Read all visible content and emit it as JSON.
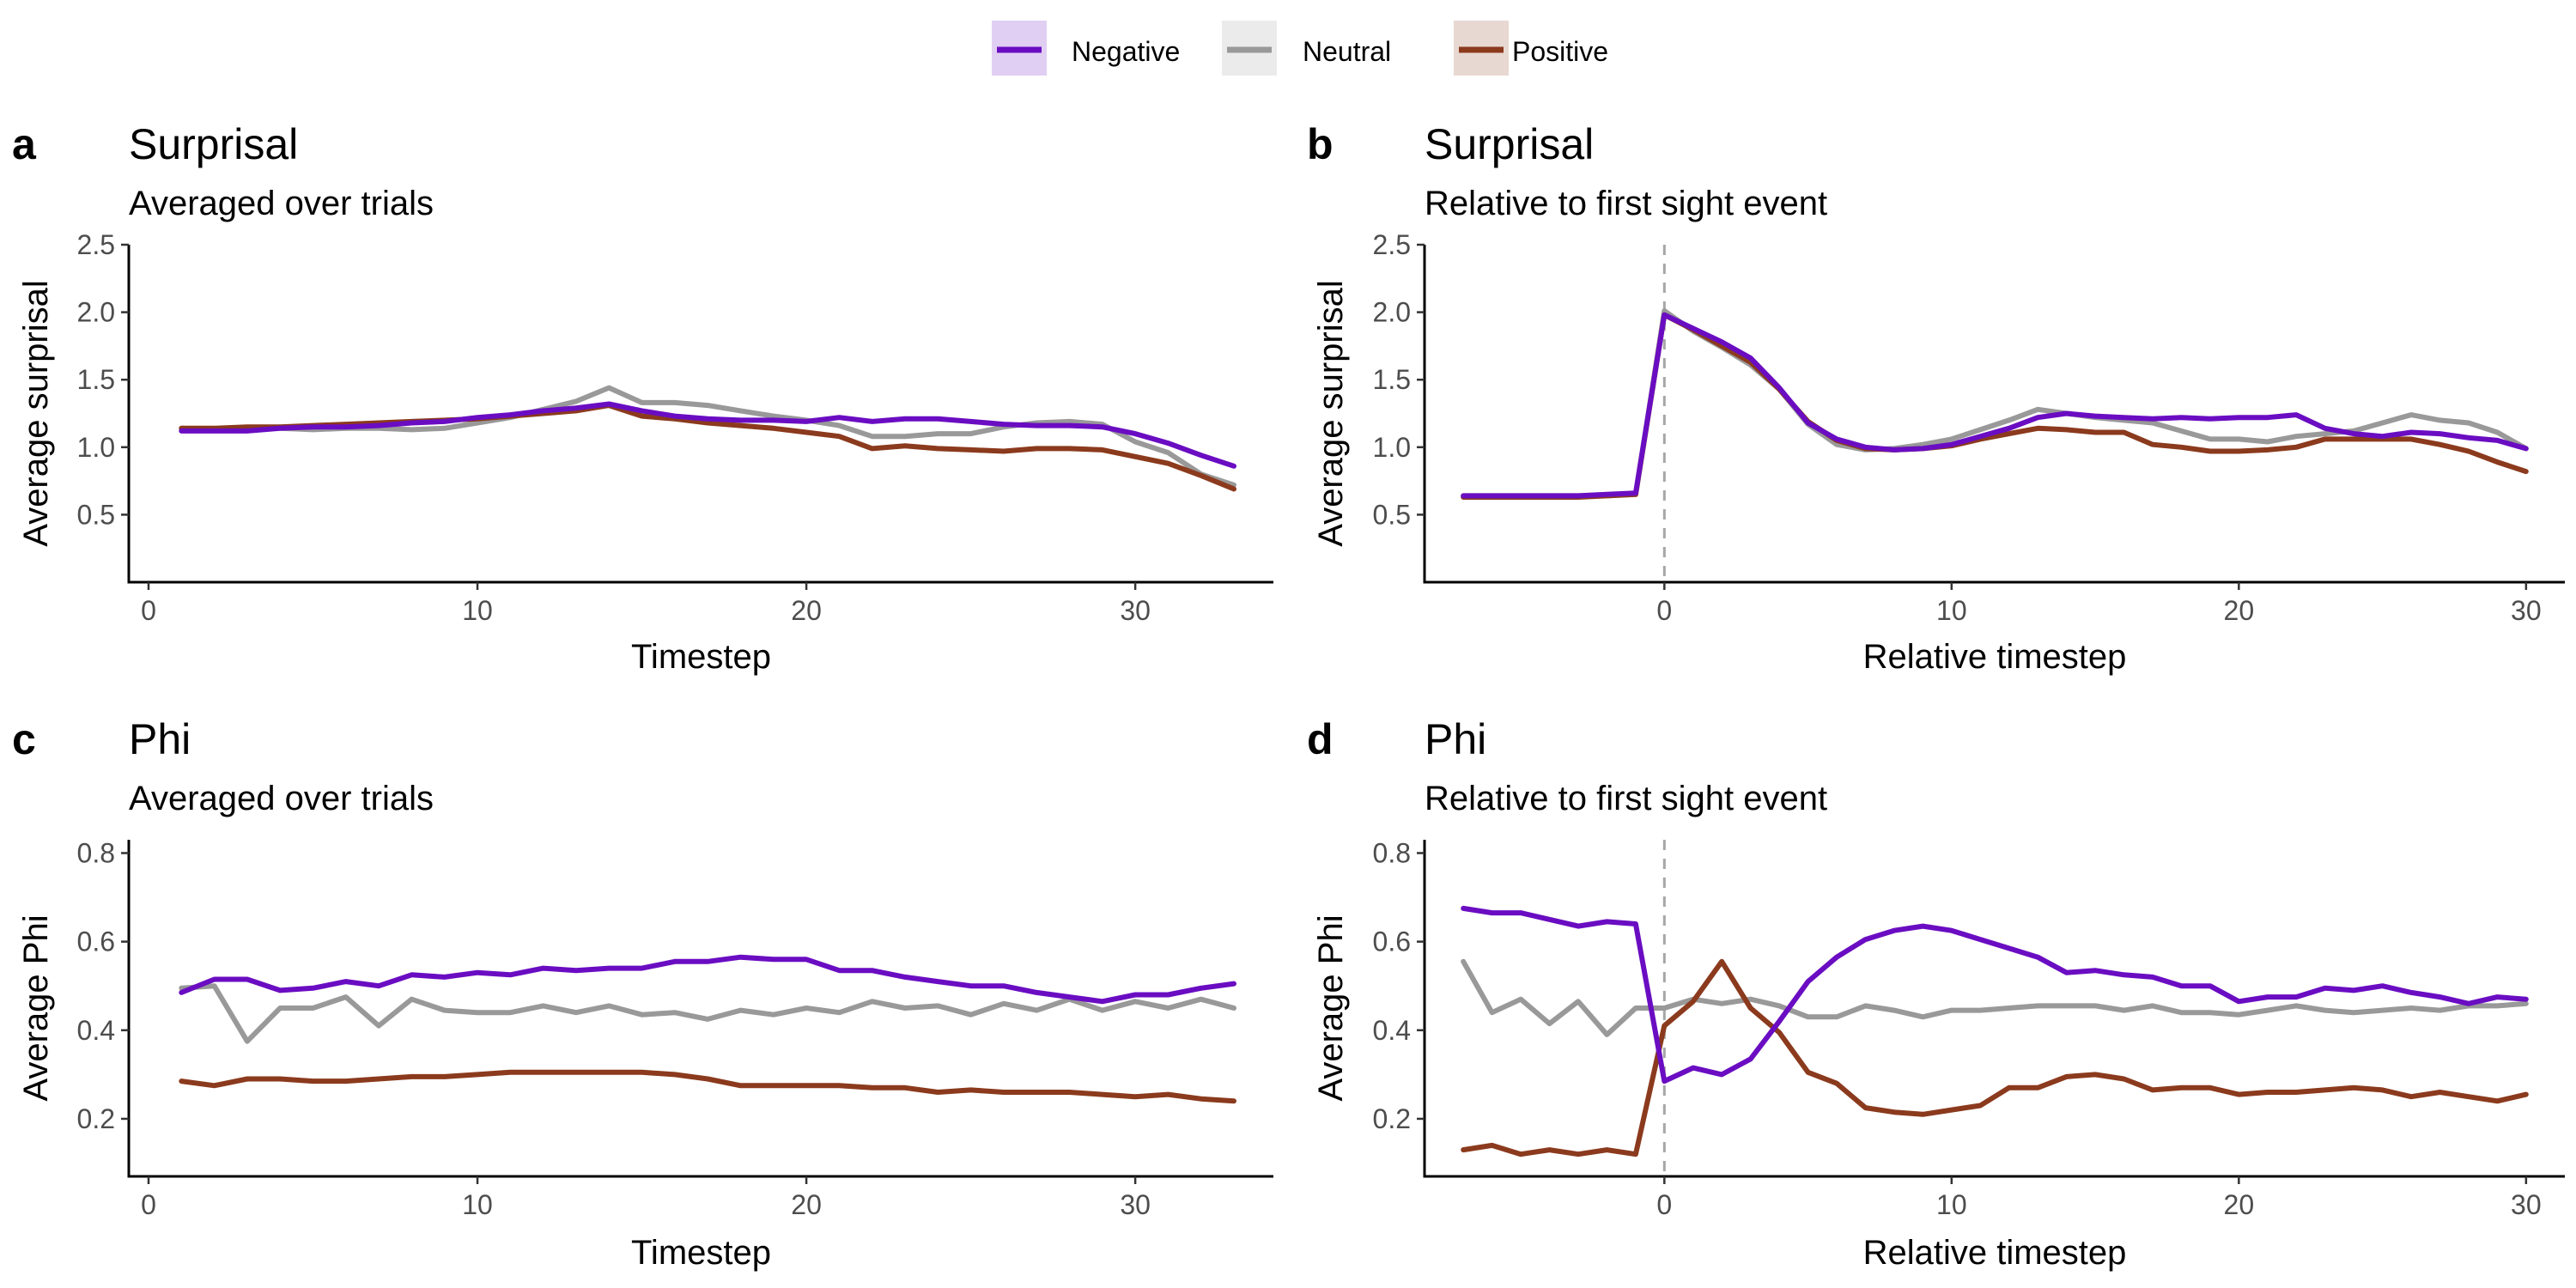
{
  "legend": {
    "items": [
      {
        "label": "Negative",
        "color": "#6a0dc2"
      },
      {
        "label": "Neutral",
        "color": "#999999"
      },
      {
        "label": "Positive",
        "color": "#8b3a1d"
      }
    ]
  },
  "chart_data": [
    {
      "panel": "a",
      "type": "line",
      "title": "Surprisal",
      "subtitle": "Averaged over trials",
      "xlabel": "Timestep",
      "ylabel": "Average surprisal",
      "xlim": [
        -0.6,
        34.2
      ],
      "ylim": [
        0,
        2.5
      ],
      "xticks": [
        0,
        10,
        20,
        30
      ],
      "yticks": [
        0.5,
        1.0,
        1.5,
        2.0,
        2.5
      ],
      "yticklabels": [
        "0.5",
        "1.0",
        "1.5",
        "2.0",
        "2.5"
      ],
      "ref_line": null,
      "x": [
        1,
        2,
        3,
        4,
        5,
        6,
        7,
        8,
        9,
        10,
        11,
        12,
        13,
        14,
        15,
        16,
        17,
        18,
        19,
        20,
        21,
        22,
        23,
        24,
        25,
        26,
        27,
        28,
        29,
        30,
        31,
        32,
        33
      ],
      "series": [
        {
          "name": "Negative",
          "values": [
            1.12,
            1.12,
            1.12,
            1.14,
            1.15,
            1.15,
            1.16,
            1.18,
            1.19,
            1.22,
            1.24,
            1.27,
            1.29,
            1.32,
            1.27,
            1.23,
            1.21,
            1.2,
            1.2,
            1.19,
            1.22,
            1.19,
            1.21,
            1.21,
            1.19,
            1.17,
            1.16,
            1.16,
            1.15,
            1.1,
            1.03,
            0.94,
            0.86
          ]
        },
        {
          "name": "Neutral",
          "values": [
            1.14,
            1.13,
            1.14,
            1.14,
            1.13,
            1.14,
            1.14,
            1.13,
            1.14,
            1.18,
            1.22,
            1.28,
            1.34,
            1.44,
            1.33,
            1.33,
            1.31,
            1.27,
            1.23,
            1.2,
            1.16,
            1.08,
            1.08,
            1.1,
            1.1,
            1.15,
            1.18,
            1.19,
            1.17,
            1.04,
            0.96,
            0.8,
            0.72
          ]
        },
        {
          "name": "Positive",
          "values": [
            1.14,
            1.14,
            1.15,
            1.15,
            1.16,
            1.17,
            1.18,
            1.19,
            1.2,
            1.21,
            1.23,
            1.25,
            1.27,
            1.31,
            1.23,
            1.21,
            1.18,
            1.16,
            1.14,
            1.11,
            1.08,
            0.99,
            1.01,
            0.99,
            0.98,
            0.97,
            0.99,
            0.99,
            0.98,
            0.93,
            0.88,
            0.79,
            0.69
          ]
        }
      ]
    },
    {
      "panel": "b",
      "type": "line",
      "title": "Surprisal",
      "subtitle": "Relative to first sight event",
      "xlabel": "Relative timestep",
      "ylabel": "Average surprisal",
      "xlim": [
        -8.35,
        31.35
      ],
      "ylim": [
        0,
        2.5
      ],
      "xticks": [
        0,
        10,
        20,
        30
      ],
      "yticks": [
        0.5,
        1.0,
        1.5,
        2.0,
        2.5
      ],
      "yticklabels": [
        "0.5",
        "1.0",
        "1.5",
        "2.0",
        "2.5"
      ],
      "ref_line": 0,
      "x": [
        -7,
        -6,
        -5,
        -4,
        -3,
        -2,
        -1,
        0,
        1,
        2,
        3,
        4,
        5,
        6,
        7,
        8,
        9,
        10,
        11,
        12,
        13,
        14,
        15,
        16,
        17,
        18,
        19,
        20,
        21,
        22,
        23,
        24,
        25,
        26,
        27,
        28,
        29,
        30
      ],
      "series": [
        {
          "name": "Negative",
          "values": [
            0.64,
            0.64,
            0.64,
            0.64,
            0.64,
            0.65,
            0.66,
            1.98,
            1.88,
            1.78,
            1.66,
            1.44,
            1.18,
            1.06,
            1.0,
            0.98,
            0.99,
            1.02,
            1.08,
            1.14,
            1.22,
            1.25,
            1.23,
            1.22,
            1.21,
            1.22,
            1.21,
            1.22,
            1.22,
            1.24,
            1.14,
            1.1,
            1.08,
            1.11,
            1.1,
            1.07,
            1.05,
            0.99
          ]
        },
        {
          "name": "Neutral",
          "values": [
            0.64,
            0.64,
            0.64,
            0.64,
            0.64,
            0.64,
            0.65,
            2.01,
            1.86,
            1.74,
            1.61,
            1.43,
            1.17,
            1.02,
            0.98,
            0.99,
            1.02,
            1.06,
            1.13,
            1.2,
            1.28,
            1.25,
            1.22,
            1.2,
            1.18,
            1.12,
            1.06,
            1.06,
            1.04,
            1.08,
            1.1,
            1.12,
            1.18,
            1.24,
            1.2,
            1.18,
            1.11,
            0.99
          ]
        },
        {
          "name": "Positive",
          "values": [
            0.63,
            0.63,
            0.63,
            0.63,
            0.63,
            0.64,
            0.65,
            1.98,
            1.87,
            1.75,
            1.63,
            1.43,
            1.19,
            1.05,
            0.99,
            0.98,
            0.99,
            1.01,
            1.06,
            1.1,
            1.14,
            1.13,
            1.11,
            1.11,
            1.02,
            1.0,
            0.97,
            0.97,
            0.98,
            1.0,
            1.06,
            1.06,
            1.06,
            1.06,
            1.02,
            0.97,
            0.89,
            0.82
          ]
        }
      ]
    },
    {
      "panel": "c",
      "type": "line",
      "title": "Phi",
      "subtitle": "Averaged over trials",
      "xlabel": "Timestep",
      "ylabel": "Average Phi",
      "xlim": [
        -0.6,
        34.2
      ],
      "ylim": [
        0.07,
        0.83
      ],
      "xticks": [
        0,
        10,
        20,
        30
      ],
      "yticks": [
        0.2,
        0.4,
        0.6,
        0.8
      ],
      "yticklabels": [
        "0.2",
        "0.4",
        "0.6",
        "0.8"
      ],
      "ref_line": null,
      "x": [
        1,
        2,
        3,
        4,
        5,
        6,
        7,
        8,
        9,
        10,
        11,
        12,
        13,
        14,
        15,
        16,
        17,
        18,
        19,
        20,
        21,
        22,
        23,
        24,
        25,
        26,
        27,
        28,
        29,
        30,
        31,
        32,
        33
      ],
      "series": [
        {
          "name": "Negative",
          "values": [
            0.485,
            0.515,
            0.515,
            0.49,
            0.495,
            0.51,
            0.5,
            0.525,
            0.52,
            0.53,
            0.525,
            0.54,
            0.535,
            0.54,
            0.54,
            0.555,
            0.555,
            0.565,
            0.56,
            0.56,
            0.535,
            0.535,
            0.52,
            0.51,
            0.5,
            0.5,
            0.485,
            0.475,
            0.465,
            0.48,
            0.48,
            0.495,
            0.505
          ]
        },
        {
          "name": "Neutral",
          "values": [
            0.495,
            0.5,
            0.375,
            0.45,
            0.45,
            0.475,
            0.41,
            0.47,
            0.445,
            0.44,
            0.44,
            0.455,
            0.44,
            0.455,
            0.435,
            0.44,
            0.425,
            0.445,
            0.435,
            0.45,
            0.44,
            0.465,
            0.45,
            0.455,
            0.435,
            0.46,
            0.445,
            0.47,
            0.445,
            0.465,
            0.45,
            0.47,
            0.45
          ]
        },
        {
          "name": "Positive",
          "values": [
            0.285,
            0.275,
            0.29,
            0.29,
            0.285,
            0.285,
            0.29,
            0.295,
            0.295,
            0.3,
            0.305,
            0.305,
            0.305,
            0.305,
            0.305,
            0.3,
            0.29,
            0.275,
            0.275,
            0.275,
            0.275,
            0.27,
            0.27,
            0.26,
            0.265,
            0.26,
            0.26,
            0.26,
            0.255,
            0.25,
            0.255,
            0.245,
            0.24
          ]
        }
      ]
    },
    {
      "panel": "d",
      "type": "line",
      "title": "Phi",
      "subtitle": "Relative to first sight event",
      "xlabel": "Relative timestep",
      "ylabel": "Average Phi",
      "xlim": [
        -8.35,
        31.35
      ],
      "ylim": [
        0.07,
        0.83
      ],
      "xticks": [
        0,
        10,
        20,
        30
      ],
      "yticks": [
        0.2,
        0.4,
        0.6,
        0.8
      ],
      "yticklabels": [
        "0.2",
        "0.4",
        "0.6",
        "0.8"
      ],
      "ref_line": 0,
      "x": [
        -7,
        -6,
        -5,
        -4,
        -3,
        -2,
        -1,
        0,
        1,
        2,
        3,
        4,
        5,
        6,
        7,
        8,
        9,
        10,
        11,
        12,
        13,
        14,
        15,
        16,
        17,
        18,
        19,
        20,
        21,
        22,
        23,
        24,
        25,
        26,
        27,
        28,
        29,
        30
      ],
      "series": [
        {
          "name": "Negative",
          "values": [
            0.675,
            0.665,
            0.665,
            0.65,
            0.635,
            0.645,
            0.64,
            0.285,
            0.315,
            0.3,
            0.335,
            0.42,
            0.51,
            0.565,
            0.605,
            0.625,
            0.635,
            0.625,
            0.605,
            0.585,
            0.565,
            0.53,
            0.535,
            0.525,
            0.52,
            0.5,
            0.5,
            0.465,
            0.475,
            0.475,
            0.495,
            0.49,
            0.5,
            0.485,
            0.475,
            0.46,
            0.475,
            0.47
          ]
        },
        {
          "name": "Neutral",
          "values": [
            0.555,
            0.44,
            0.47,
            0.415,
            0.465,
            0.39,
            0.45,
            0.45,
            0.47,
            0.46,
            0.47,
            0.455,
            0.43,
            0.43,
            0.455,
            0.445,
            0.43,
            0.445,
            0.445,
            0.45,
            0.455,
            0.455,
            0.455,
            0.445,
            0.455,
            0.44,
            0.44,
            0.435,
            0.445,
            0.455,
            0.445,
            0.44,
            0.445,
            0.45,
            0.445,
            0.455,
            0.455,
            0.46
          ]
        },
        {
          "name": "Positive",
          "values": [
            0.13,
            0.14,
            0.12,
            0.13,
            0.12,
            0.13,
            0.12,
            0.41,
            0.465,
            0.555,
            0.45,
            0.395,
            0.305,
            0.28,
            0.225,
            0.215,
            0.21,
            0.22,
            0.23,
            0.27,
            0.27,
            0.295,
            0.3,
            0.29,
            0.265,
            0.27,
            0.27,
            0.255,
            0.26,
            0.26,
            0.265,
            0.27,
            0.265,
            0.25,
            0.26,
            0.25,
            0.24,
            0.255
          ]
        }
      ]
    }
  ]
}
